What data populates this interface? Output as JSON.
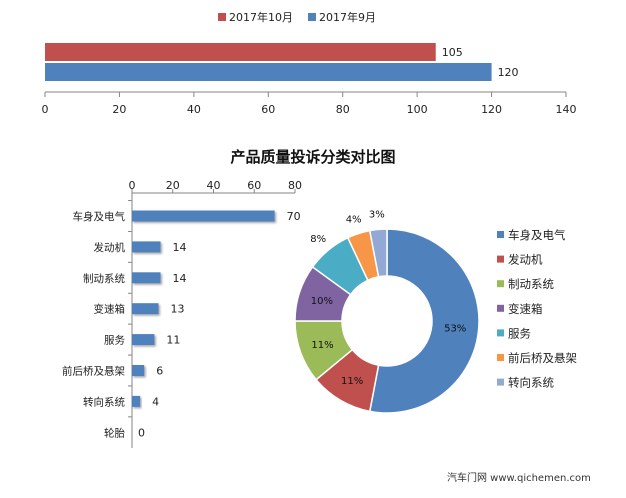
{
  "chart_data": [
    {
      "type": "bar",
      "orientation": "horizontal",
      "series": [
        {
          "name": "2017年10月",
          "color": "#c0504d",
          "values": [
            105
          ]
        },
        {
          "name": "2017年9月",
          "color": "#4f81bd",
          "values": [
            120
          ]
        }
      ],
      "xlim": [
        0,
        140
      ],
      "xticks": [
        "0",
        "20",
        "40",
        "60",
        "80",
        "100",
        "120",
        "140"
      ],
      "legend": "top-center",
      "grid": false
    },
    {
      "type": "bar",
      "orientation": "horizontal",
      "title": "产品质量投诉分类对比图",
      "categories": [
        "车身及电气",
        "发动机",
        "制动系统",
        "变速箱",
        "服务",
        "前后桥及悬架",
        "转向系统",
        "轮胎"
      ],
      "values": [
        70,
        14,
        14,
        13,
        11,
        6,
        4,
        0
      ],
      "color": "#4f81bd",
      "xlim": [
        0,
        80
      ],
      "xticks": [
        "0",
        "20",
        "40",
        "60",
        "80"
      ],
      "axis_position": "top",
      "grid": false
    },
    {
      "type": "pie",
      "variant": "donut",
      "categories": [
        "车身及电气",
        "发动机",
        "制动系统",
        "变速箱",
        "服务",
        "前后桥及悬架",
        "转向系统"
      ],
      "values": [
        53,
        11,
        11,
        10,
        8,
        4,
        3
      ],
      "labels": [
        "53%",
        "11%",
        "11%",
        "10%",
        "8%",
        "4%",
        "3%"
      ],
      "colors": [
        "#4f81bd",
        "#c0504d",
        "#9bbb59",
        "#8064a2",
        "#4bacc6",
        "#f79646",
        "#93a9d5"
      ],
      "legend": "right"
    }
  ],
  "watermark": "汽车门网 www.qichemen.com"
}
